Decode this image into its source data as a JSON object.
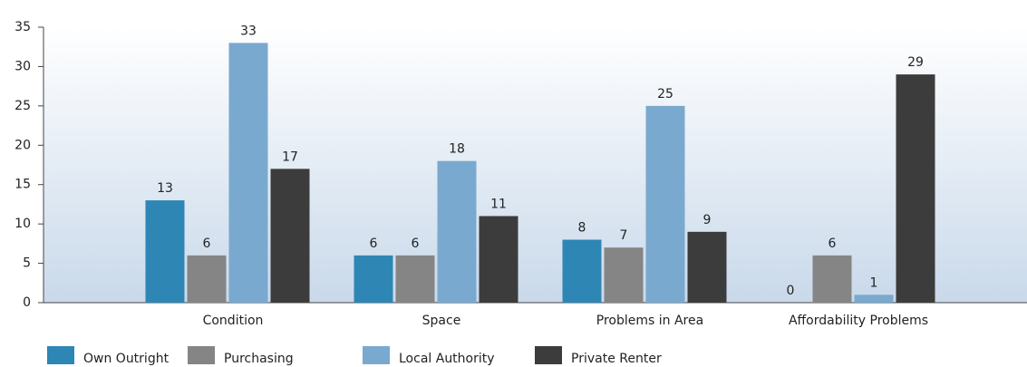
{
  "chart_data": {
    "type": "bar",
    "categories": [
      "Condition",
      "Space",
      "Problems in Area",
      "Affordability Problems"
    ],
    "series": [
      {
        "name": "Own Outright",
        "color": "#2e86b5",
        "values": [
          13,
          6,
          8,
          0
        ]
      },
      {
        "name": "Purchasing",
        "color": "#858585",
        "values": [
          6,
          6,
          7,
          6
        ]
      },
      {
        "name": "Local Authority",
        "color": "#7aa9cf",
        "values": [
          33,
          18,
          25,
          1
        ]
      },
      {
        "name": "Private Renter",
        "color": "#3c3c3c",
        "values": [
          17,
          11,
          9,
          29
        ]
      }
    ],
    "ylim": [
      0,
      35
    ],
    "yticks": [
      0,
      5,
      10,
      15,
      20,
      25,
      30,
      35
    ]
  }
}
